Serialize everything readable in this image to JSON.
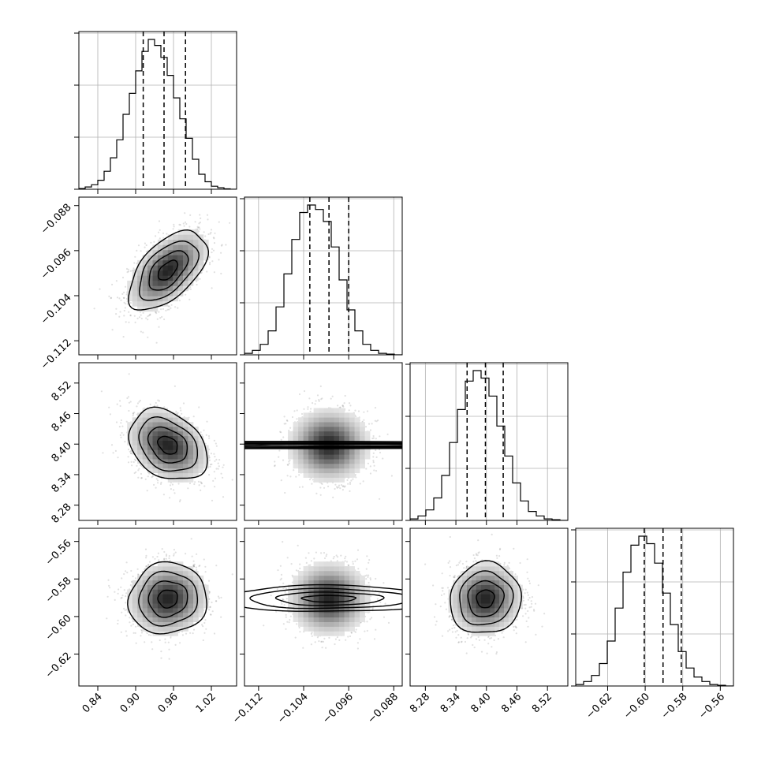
{
  "chart_data": {
    "type": "corner",
    "grid": true,
    "parameters": [
      {
        "range": [
          0.81,
          1.06
        ],
        "ticks": [
          0.84,
          0.9,
          0.96,
          1.02
        ],
        "tick_labels": [
          "0.84",
          "0.90",
          "0.96",
          "1.02"
        ],
        "mean": 0.951,
        "sd": 0.031,
        "quantiles": [
          0.912,
          0.945,
          0.979
        ],
        "hist_bin_edges": [
          0.81,
          0.82,
          0.83,
          0.84,
          0.85,
          0.86,
          0.87,
          0.88,
          0.89,
          0.9,
          0.91,
          0.92,
          0.93,
          0.94,
          0.95,
          0.96,
          0.97,
          0.98,
          0.99,
          1.0,
          1.01,
          1.02,
          1.03,
          1.04,
          1.05,
          1.06
        ],
        "hist_counts": [
          0.005,
          0.015,
          0.03,
          0.06,
          0.12,
          0.21,
          0.33,
          0.5,
          0.64,
          0.79,
          0.92,
          1.0,
          0.96,
          0.88,
          0.76,
          0.61,
          0.47,
          0.34,
          0.2,
          0.1,
          0.05,
          0.02,
          0.01,
          0.003,
          0.0
        ]
      },
      {
        "range": [
          -0.1145,
          -0.0865
        ],
        "ticks": [
          -0.112,
          -0.104,
          -0.096,
          -0.088
        ],
        "tick_labels": [
          "−0.112",
          "−0.104",
          "−0.096",
          "−0.088"
        ],
        "mean": -0.0995,
        "sd": 0.0035,
        "quantiles": [
          -0.1029,
          -0.0995,
          -0.096
        ],
        "hist_bin_edges": [
          -0.1145,
          -0.1131,
          -0.1117,
          -0.1103,
          -0.1089,
          -0.1075,
          -0.1061,
          -0.1047,
          -0.1033,
          -0.1019,
          -0.1005,
          -0.0991,
          -0.0977,
          -0.0963,
          -0.0949,
          -0.0935,
          -0.0921,
          -0.0907,
          -0.0893,
          -0.0879,
          -0.0865
        ],
        "hist_counts": [
          0.01,
          0.03,
          0.07,
          0.16,
          0.32,
          0.54,
          0.77,
          0.95,
          1.0,
          0.97,
          0.89,
          0.72,
          0.5,
          0.3,
          0.16,
          0.07,
          0.03,
          0.01,
          0.005,
          0.0
        ]
      },
      {
        "range": [
          8.25,
          8.56
        ],
        "ticks": [
          8.28,
          8.34,
          8.4,
          8.46,
          8.52
        ],
        "tick_labels": [
          "8.28",
          "8.34",
          "8.40",
          "8.46",
          "8.52"
        ],
        "mean": 8.398,
        "sd": 0.035,
        "quantiles": [
          8.362,
          8.398,
          8.433
        ],
        "hist_bin_edges": [
          8.25,
          8.2655,
          8.281,
          8.2965,
          8.312,
          8.3275,
          8.343,
          8.3585,
          8.374,
          8.3895,
          8.405,
          8.4205,
          8.436,
          8.4515,
          8.467,
          8.4825,
          8.498,
          8.5135,
          8.529,
          8.5445,
          8.56
        ],
        "hist_counts": [
          0.01,
          0.03,
          0.07,
          0.15,
          0.3,
          0.52,
          0.74,
          0.93,
          1.0,
          0.95,
          0.83,
          0.63,
          0.43,
          0.25,
          0.13,
          0.06,
          0.03,
          0.01,
          0.005,
          0.0
        ]
      },
      {
        "range": [
          -0.637,
          -0.553
        ],
        "ticks": [
          -0.62,
          -0.6,
          -0.58,
          -0.56
        ],
        "tick_labels": [
          "−0.62",
          "−0.60",
          "−0.58",
          "−0.56"
        ],
        "mean": -0.5905,
        "sd": 0.0095,
        "quantiles": [
          -0.6005,
          -0.5905,
          -0.5808
        ],
        "hist_bin_edges": [
          -0.637,
          -0.6328,
          -0.6286,
          -0.6244,
          -0.6202,
          -0.616,
          -0.6118,
          -0.6076,
          -0.6034,
          -0.5992,
          -0.595,
          -0.5908,
          -0.5866,
          -0.5824,
          -0.5782,
          -0.574,
          -0.5698,
          -0.5656,
          -0.5614,
          -0.5572,
          -0.553
        ],
        "hist_counts": [
          0.01,
          0.03,
          0.07,
          0.15,
          0.3,
          0.52,
          0.76,
          0.94,
          1.0,
          0.95,
          0.82,
          0.62,
          0.41,
          0.23,
          0.12,
          0.06,
          0.03,
          0.01,
          0.005,
          0.0
        ]
      }
    ],
    "correlations": [
      [
        1,
        0.55,
        -0.3,
        0.05
      ],
      [
        0.55,
        1,
        0.0,
        0.0
      ],
      [
        -0.3,
        0.0,
        1,
        0.05
      ],
      [
        0.05,
        0.0,
        0.05,
        1
      ]
    ]
  }
}
